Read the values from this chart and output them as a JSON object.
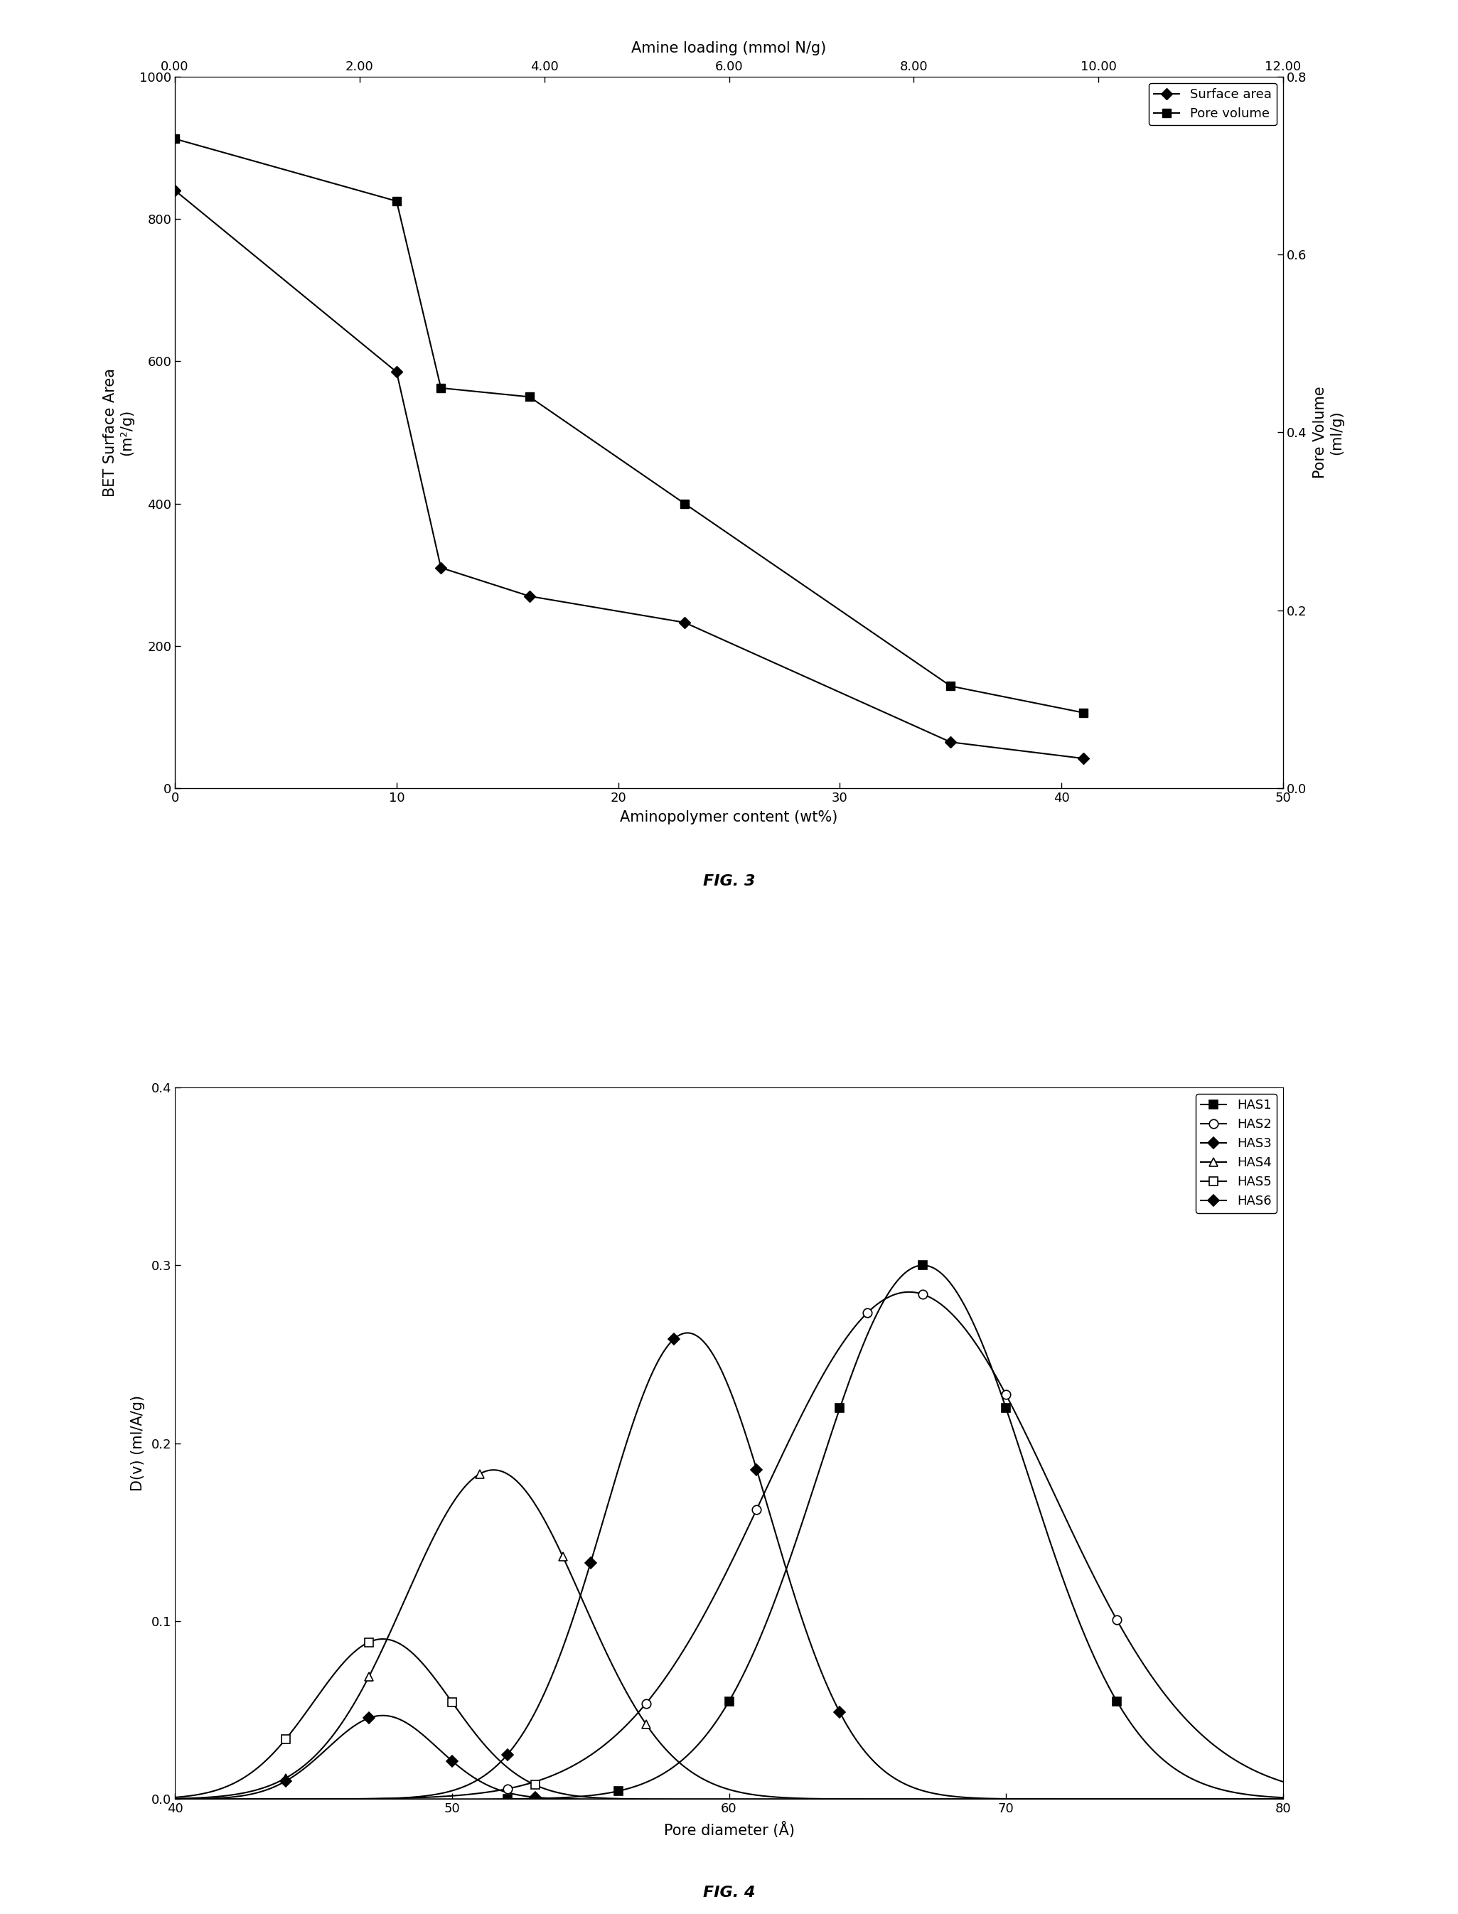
{
  "fig3": {
    "surface_area_x": [
      0,
      10,
      12,
      16,
      23,
      35,
      41
    ],
    "surface_area_y": [
      840,
      585,
      310,
      270,
      233,
      65,
      42
    ],
    "pore_volume_x": [
      0,
      10,
      12,
      16,
      23,
      35,
      41
    ],
    "pore_volume_y": [
      0.73,
      0.66,
      0.45,
      0.44,
      0.32,
      0.115,
      0.085
    ],
    "xlabel": "Aminopolymer content (wt%)",
    "ylabel_left": "BET Surface Area\n(m²/g)",
    "ylabel_right": "Pore Volume\n(ml/g)",
    "xlabel_top": "Amine loading (mmol N/g)",
    "xlim": [
      0,
      50
    ],
    "ylim_left": [
      0,
      1000
    ],
    "ylim_right": [
      0.0,
      0.8
    ],
    "xticks_bottom": [
      0,
      10,
      20,
      30,
      40,
      50
    ],
    "yticks_left": [
      0,
      200,
      400,
      600,
      800,
      1000
    ],
    "yticks_right": [
      0.0,
      0.2,
      0.4,
      0.6,
      0.8
    ],
    "xticks_top_labels": [
      "0.00",
      "2.00",
      "4.00",
      "6.00",
      "8.00",
      "10.00",
      "12.00"
    ],
    "xticks_top_values": [
      0.0,
      2.0,
      4.0,
      6.0,
      8.0,
      10.0,
      12.0
    ],
    "top_axis_scale": 4.1667,
    "fig_label": "FIG. 3",
    "legend_surface": "Surface area",
    "legend_pore": "Pore volume"
  },
  "fig4": {
    "xlim": [
      40,
      80
    ],
    "ylim": [
      0.0,
      0.4
    ],
    "xticks": [
      40,
      50,
      60,
      70,
      80
    ],
    "yticks": [
      0.0,
      0.1,
      0.2,
      0.3,
      0.4
    ],
    "xlabel": "Pore diameter (Å)",
    "ylabel": "D(v) (ml/A/g)",
    "fig_label": "FIG. 4",
    "has1": {
      "mu": 67.0,
      "sigma": 3.8,
      "amp": 0.3,
      "marker": "s",
      "filled": true
    },
    "has2": {
      "mu": 66.5,
      "sigma": 5.2,
      "amp": 0.285,
      "marker": "o",
      "filled": false
    },
    "has3": {
      "mu": 58.5,
      "sigma": 3.0,
      "amp": 0.262,
      "marker": "D",
      "filled": true
    },
    "has4": {
      "mu": 51.5,
      "sigma": 3.2,
      "amp": 0.185,
      "marker": "^",
      "filled": false
    },
    "has5": {
      "mu": 47.5,
      "sigma": 2.5,
      "amp": 0.09,
      "marker": "s",
      "filled": false
    },
    "has6": {
      "mu": 47.5,
      "sigma": 2.0,
      "amp": 0.047,
      "marker": "D",
      "filled": true
    },
    "series_names": [
      "HAS1",
      "HAS2",
      "HAS3",
      "HAS4",
      "HAS5",
      "HAS6"
    ]
  }
}
